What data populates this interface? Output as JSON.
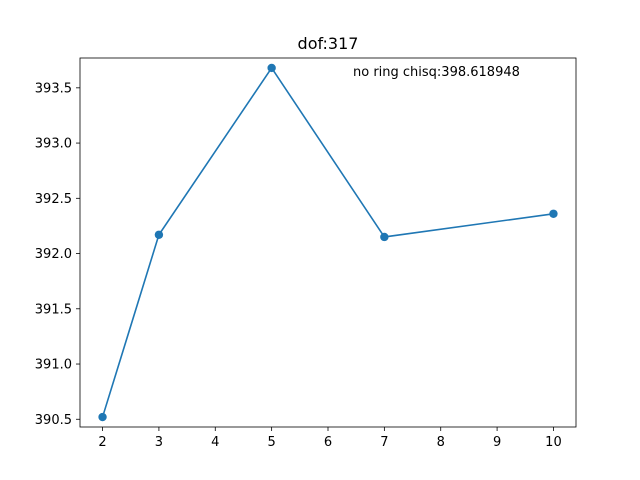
{
  "chart_data": {
    "type": "line",
    "title": "dof:317",
    "annotation": "no ring chisq:398.618948",
    "xlabel": "",
    "ylabel": "",
    "x": [
      2,
      3,
      5,
      7,
      10
    ],
    "series": [
      {
        "values": [
          390.52,
          392.17,
          393.68,
          392.15,
          392.36
        ]
      }
    ],
    "xlim": [
      1.6,
      10.4
    ],
    "ylim": [
      390.43,
      393.77
    ],
    "xticks": [
      2,
      3,
      4,
      5,
      6,
      7,
      8,
      9,
      10
    ],
    "yticks": [
      "390.5",
      "391.0",
      "391.5",
      "392.0",
      "392.5",
      "393.0",
      "393.5"
    ],
    "grid": false,
    "line_color": "#1f77b4",
    "marker": "circle"
  }
}
